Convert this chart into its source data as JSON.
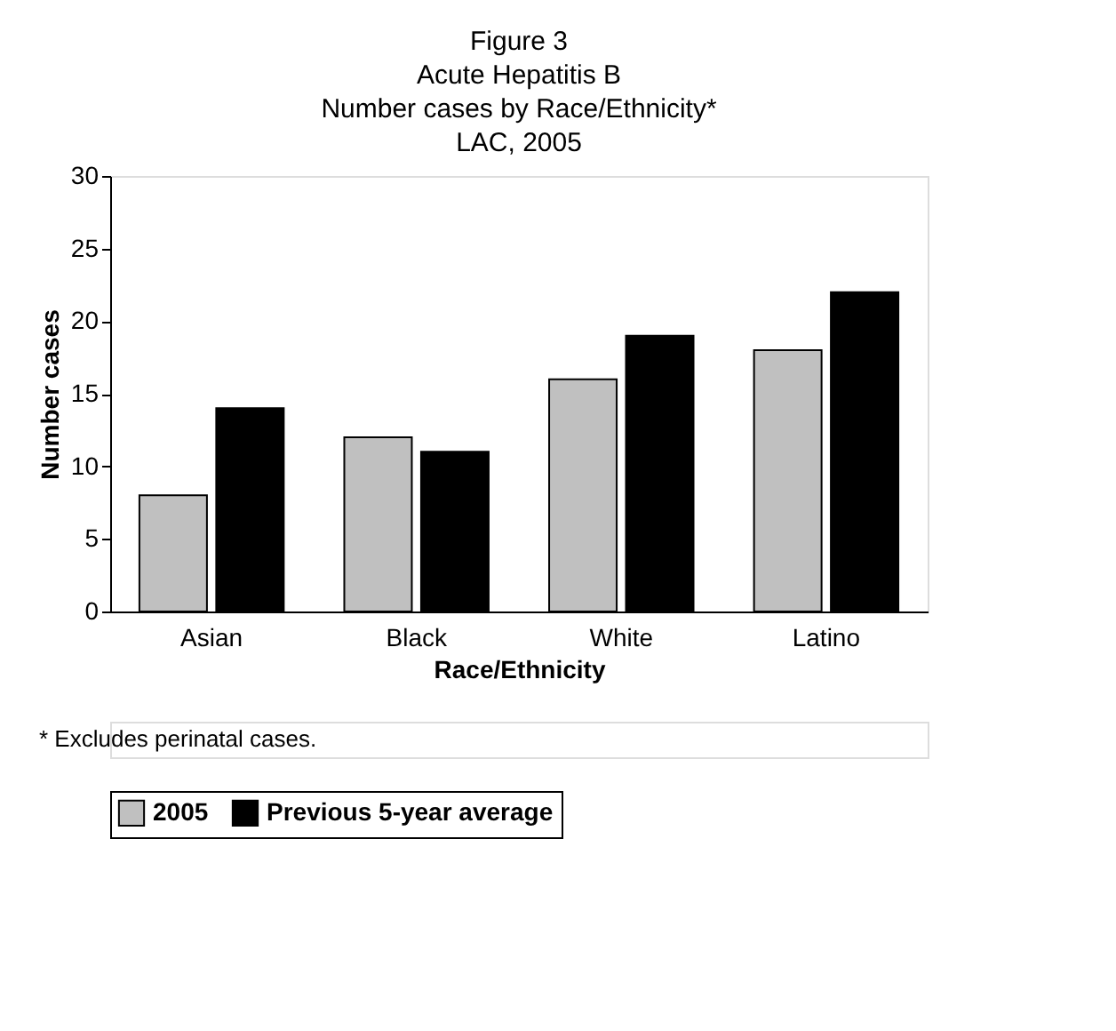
{
  "chart_data": {
    "type": "bar",
    "title": [
      "Figure 3",
      "Acute Hepatitis B",
      "Number cases by Race/Ethnicity*",
      "LAC, 2005"
    ],
    "xlabel": "Race/Ethnicity",
    "ylabel": "Number cases",
    "categories": [
      "Asian",
      "Black",
      "White",
      "Latino"
    ],
    "series": [
      {
        "name": "2005",
        "color": "#c0c0c0",
        "values": [
          8,
          12,
          16,
          18
        ]
      },
      {
        "name": "Previous 5-year average",
        "color": "#000000",
        "values": [
          14,
          11,
          19,
          22
        ]
      }
    ],
    "ylim": [
      0,
      30
    ],
    "yticks": [
      0,
      5,
      10,
      15,
      20,
      25,
      30
    ],
    "grid": false,
    "legend": "bottom",
    "annotations": [
      "* Excludes perinatal cases."
    ]
  }
}
